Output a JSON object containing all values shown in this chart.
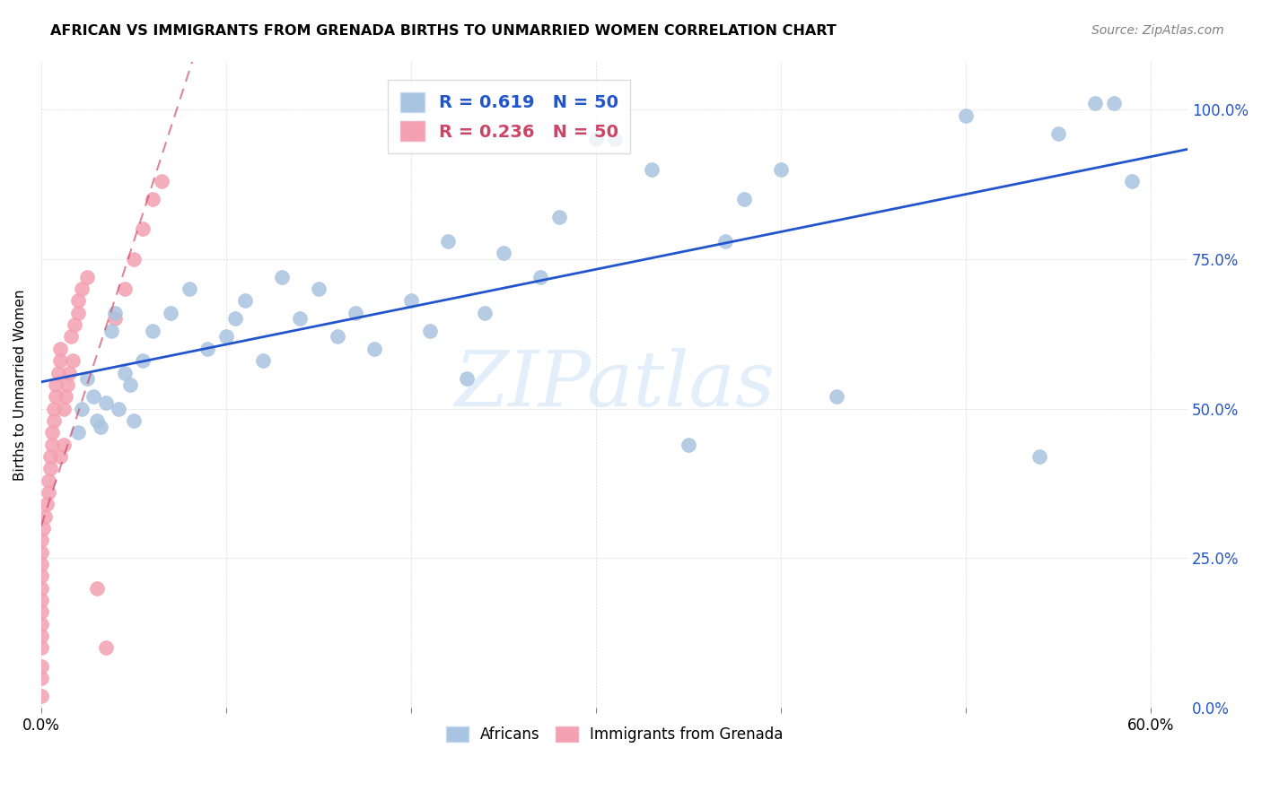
{
  "title": "AFRICAN VS IMMIGRANTS FROM GRENADA BIRTHS TO UNMARRIED WOMEN CORRELATION CHART",
  "source": "Source: ZipAtlas.com",
  "ylabel": "Births to Unmarried Women",
  "legend_africans": "Africans",
  "legend_grenada": "Immigrants from Grenada",
  "R_africans": 0.619,
  "N_africans": 50,
  "R_grenada": 0.236,
  "N_grenada": 50,
  "xlim": [
    0.0,
    0.62
  ],
  "ylim": [
    0.0,
    1.08
  ],
  "ytick_labels": [
    "0.0%",
    "25.0%",
    "50.0%",
    "75.0%",
    "100.0%"
  ],
  "color_africans": "#a8c4e0",
  "color_grenada": "#f4a0b0",
  "trendline_africans": "#2255cc",
  "trendline_grenada": "#cc4466",
  "africans_x": [
    0.02,
    0.022,
    0.025,
    0.028,
    0.03,
    0.032,
    0.035,
    0.038,
    0.04,
    0.042,
    0.045,
    0.048,
    0.05,
    0.055,
    0.06,
    0.07,
    0.08,
    0.09,
    0.1,
    0.105,
    0.11,
    0.12,
    0.13,
    0.14,
    0.15,
    0.16,
    0.17,
    0.18,
    0.2,
    0.21,
    0.22,
    0.23,
    0.24,
    0.25,
    0.27,
    0.28,
    0.3,
    0.31,
    0.33,
    0.35,
    0.37,
    0.38,
    0.4,
    0.43,
    0.5,
    0.54,
    0.55,
    0.57,
    0.58,
    0.59
  ],
  "africans_y": [
    0.46,
    0.5,
    0.55,
    0.52,
    0.48,
    0.47,
    0.51,
    0.63,
    0.66,
    0.5,
    0.56,
    0.54,
    0.48,
    0.58,
    0.63,
    0.66,
    0.7,
    0.6,
    0.62,
    0.65,
    0.68,
    0.58,
    0.72,
    0.65,
    0.7,
    0.62,
    0.66,
    0.6,
    0.68,
    0.63,
    0.78,
    0.55,
    0.66,
    0.76,
    0.72,
    0.82,
    0.95,
    0.95,
    0.9,
    0.44,
    0.78,
    0.85,
    0.9,
    0.52,
    0.99,
    0.42,
    0.96,
    1.01,
    1.01,
    0.88
  ],
  "grenada_x": [
    0.0,
    0.0,
    0.0,
    0.0,
    0.0,
    0.0,
    0.0,
    0.0,
    0.0,
    0.0,
    0.0,
    0.0,
    0.0,
    0.001,
    0.002,
    0.003,
    0.004,
    0.004,
    0.005,
    0.005,
    0.006,
    0.006,
    0.007,
    0.007,
    0.008,
    0.008,
    0.009,
    0.01,
    0.01,
    0.01,
    0.012,
    0.012,
    0.013,
    0.014,
    0.015,
    0.016,
    0.017,
    0.018,
    0.02,
    0.02,
    0.022,
    0.025,
    0.03,
    0.035,
    0.04,
    0.045,
    0.05,
    0.055,
    0.06,
    0.065
  ],
  "grenada_y": [
    0.02,
    0.05,
    0.07,
    0.1,
    0.12,
    0.14,
    0.16,
    0.18,
    0.2,
    0.22,
    0.24,
    0.26,
    0.28,
    0.3,
    0.32,
    0.34,
    0.36,
    0.38,
    0.4,
    0.42,
    0.44,
    0.46,
    0.48,
    0.5,
    0.52,
    0.54,
    0.56,
    0.58,
    0.6,
    0.42,
    0.44,
    0.5,
    0.52,
    0.54,
    0.56,
    0.62,
    0.58,
    0.64,
    0.66,
    0.68,
    0.7,
    0.72,
    0.2,
    0.1,
    0.65,
    0.7,
    0.75,
    0.8,
    0.85,
    0.88
  ]
}
